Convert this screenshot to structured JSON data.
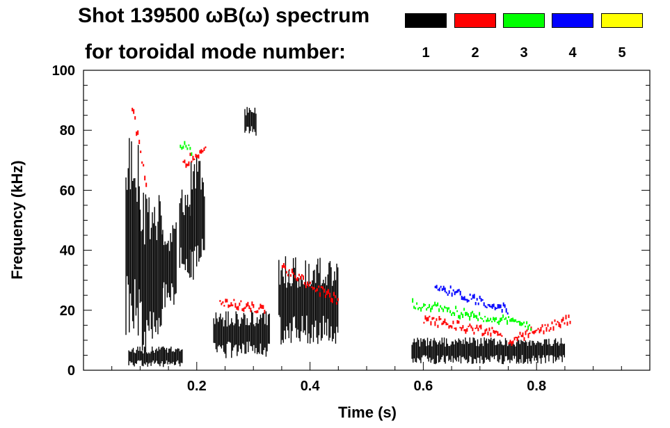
{
  "title": "Shot 139500 ωB(ω) spectrum",
  "legend_label": "for toroidal mode number:",
  "chart_data": {
    "type": "heatmap",
    "title": "Shot 139500 ωB(ω) spectrum",
    "xlabel": "Time (s)",
    "ylabel": "Frequency (kHz)",
    "xlim": [
      0.0,
      1.0
    ],
    "ylim": [
      0,
      100
    ],
    "xticks": [
      0.2,
      0.4,
      0.6,
      0.8
    ],
    "xtick_labels": [
      "0.2",
      "0.4",
      "0.6",
      "0.8"
    ],
    "yticks": [
      0,
      20,
      40,
      60,
      80,
      100
    ],
    "ytick_labels": [
      "0",
      "20",
      "40",
      "60",
      "80",
      "100"
    ],
    "legend": [
      {
        "mode": "1",
        "color": "#000000"
      },
      {
        "mode": "2",
        "color": "#ff0000"
      },
      {
        "mode": "3",
        "color": "#00ff00"
      },
      {
        "mode": "4",
        "color": "#0000ff"
      },
      {
        "mode": "5",
        "color": "#ffff00"
      }
    ],
    "series": [
      {
        "mode": 1,
        "name": "n=1",
        "color": "#000000",
        "regions": [
          {
            "t": [
              0.075,
              0.1
            ],
            "f": [
              10,
              78
            ]
          },
          {
            "t": [
              0.1,
              0.14
            ],
            "f": [
              5,
              60
            ]
          },
          {
            "t": [
              0.14,
              0.165
            ],
            "f": [
              20,
              50
            ]
          },
          {
            "t": [
              0.17,
              0.19
            ],
            "f": [
              30,
              62
            ]
          },
          {
            "t": [
              0.19,
              0.215
            ],
            "f": [
              30,
              72
            ]
          },
          {
            "t": [
              0.08,
              0.175
            ],
            "f": [
              1,
              8
            ]
          },
          {
            "t": [
              0.23,
              0.33
            ],
            "f": [
              4,
              20
            ]
          },
          {
            "t": [
              0.285,
              0.305
            ],
            "f": [
              78,
              88
            ]
          },
          {
            "t": [
              0.345,
              0.45
            ],
            "f": [
              8,
              38
            ]
          },
          {
            "t": [
              0.58,
              0.85
            ],
            "f": [
              2,
              11
            ]
          }
        ]
      },
      {
        "mode": 2,
        "name": "n=2",
        "color": "#ff0000",
        "traces": [
          {
            "t": [
              0.085,
              0.11
            ],
            "f": [
              88,
              62
            ]
          },
          {
            "t": [
              0.175,
              0.215
            ],
            "f": [
              69,
              74
            ]
          },
          {
            "t": [
              0.24,
              0.32
            ],
            "f": [
              23,
              20
            ]
          },
          {
            "t": [
              0.35,
              0.45
            ],
            "f": [
              34,
              23
            ]
          },
          {
            "t": [
              0.6,
              0.74
            ],
            "f": [
              17,
              12
            ]
          },
          {
            "t": [
              0.75,
              0.86
            ],
            "f": [
              10,
              17
            ]
          }
        ]
      },
      {
        "mode": 3,
        "name": "n=3",
        "color": "#00ff00",
        "traces": [
          {
            "t": [
              0.17,
              0.19
            ],
            "f": [
              75,
              73
            ]
          },
          {
            "t": [
              0.58,
              0.79
            ],
            "f": [
              22,
              15
            ]
          }
        ]
      },
      {
        "mode": 4,
        "name": "n=4",
        "color": "#0000ff",
        "traces": [
          {
            "t": [
              0.62,
              0.75
            ],
            "f": [
              28,
              20
            ]
          }
        ]
      },
      {
        "mode": 5,
        "name": "n=5",
        "color": "#ffff00",
        "traces": []
      }
    ]
  }
}
